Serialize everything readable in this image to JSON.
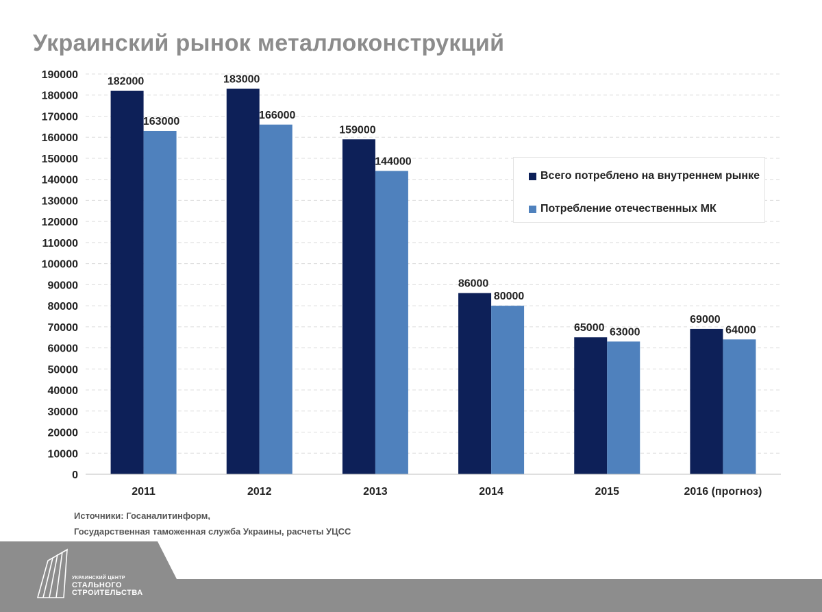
{
  "title": "Украинский рынок металлоконструкций",
  "chart_data": {
    "type": "bar",
    "categories": [
      "2011",
      "2012",
      "2013",
      "2014",
      "2015",
      "2016 (прогноз)"
    ],
    "series": [
      {
        "name": "Всего потреблено на внутреннем рынке",
        "color": "#0d2058",
        "values": [
          182000,
          183000,
          159000,
          86000,
          65000,
          69000
        ]
      },
      {
        "name": "Потребление отечественных МК",
        "color": "#4f81bd",
        "values": [
          163000,
          166000,
          144000,
          80000,
          63000,
          64000
        ]
      }
    ],
    "ylim": [
      0,
      190000
    ],
    "ytick_step": 10000,
    "grid": true,
    "legend_position": "right",
    "xlabel": "",
    "ylabel": ""
  },
  "source": {
    "line1": "Источники: Госаналитинформ,",
    "line2": "Государственная таможенная служба Украины, расчеты УЦСС"
  },
  "logo": {
    "line1": "УКРАИНСКИЙ ЦЕНТР",
    "line2": "СТАЛЬНОГО",
    "line3": "СТРОИТЕЛЬСТВА"
  }
}
